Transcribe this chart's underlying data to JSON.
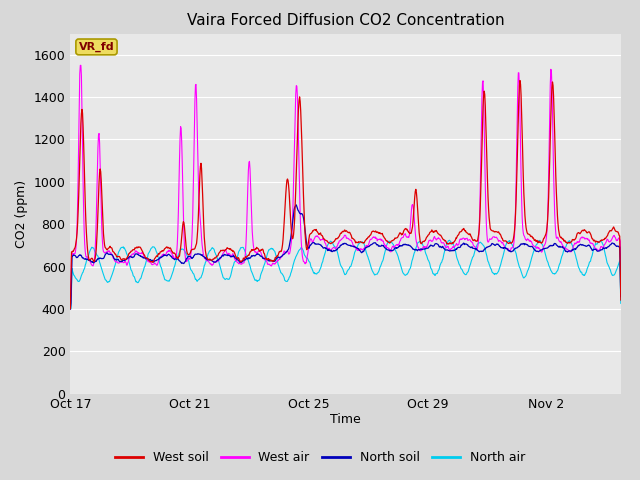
{
  "title": "Vaira Forced Diffusion CO2 Concentration",
  "xlabel": "Time",
  "ylabel": "CO2 (ppm)",
  "ylim": [
    0,
    1700
  ],
  "yticks": [
    0,
    200,
    400,
    600,
    800,
    1000,
    1200,
    1400,
    1600
  ],
  "outer_bg": "#d8d8d8",
  "plot_bg": "#e8e8e8",
  "line_colors": {
    "west_soil": "#dd0000",
    "west_air": "#ff00ff",
    "north_soil": "#0000bb",
    "north_air": "#00ccee"
  },
  "legend_labels": [
    "West soil",
    "West air",
    "North soil",
    "North air"
  ],
  "annotation_text": "VR_fd",
  "annotation_color": "#800000",
  "annotation_bg": "#eedc60",
  "xtick_labels": [
    "Oct 17",
    "Oct 21",
    "Oct 25",
    "Oct 29",
    "Nov 2"
  ],
  "xtick_pos": [
    0,
    4,
    8,
    12,
    16
  ],
  "xlim": [
    0,
    18.5
  ],
  "n_points": 1000
}
